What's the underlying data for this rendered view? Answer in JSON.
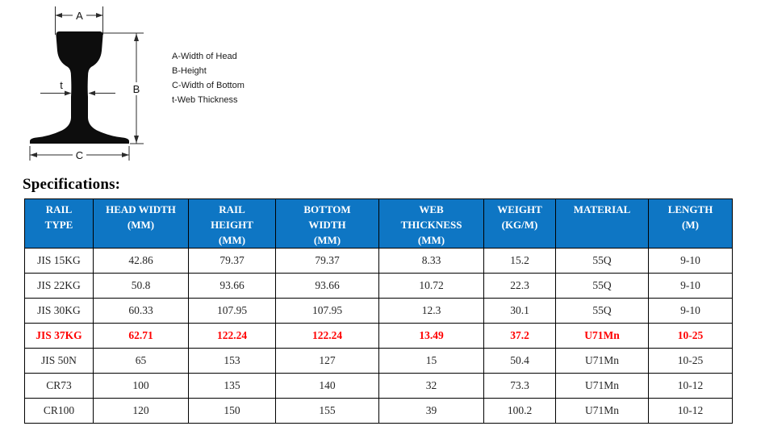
{
  "diagram": {
    "dimension_labels": {
      "a": "A",
      "b": "B",
      "c": "C",
      "t": "t"
    },
    "legend": [
      "A-Width of Head",
      "B-Height",
      "C-Width of Bottom",
      "t-Web Thickness"
    ]
  },
  "section_title": "Specifications:",
  "table": {
    "headers": [
      "RAIL\nTYPE",
      "HEAD WIDTH\n(MM)",
      "RAIL\nHEIGHT\n(MM)",
      "BOTTOM\nWIDTH\n(MM)",
      "WEB\nTHICKNESS\n(MM)",
      "WEIGHT\n(KG/M)",
      "MATERIAL",
      "LENGTH\n(M)"
    ],
    "rows": [
      {
        "highlighted": false,
        "cells": [
          "JIS 15KG",
          "42.86",
          "79.37",
          "79.37",
          "8.33",
          "15.2",
          "55Q",
          "9-10"
        ]
      },
      {
        "highlighted": false,
        "cells": [
          "JIS 22KG",
          "50.8",
          "93.66",
          "93.66",
          "10.72",
          "22.3",
          "55Q",
          "9-10"
        ]
      },
      {
        "highlighted": false,
        "cells": [
          "JIS 30KG",
          "60.33",
          "107.95",
          "107.95",
          "12.3",
          "30.1",
          "55Q",
          "9-10"
        ]
      },
      {
        "highlighted": true,
        "cells": [
          "JIS 37KG",
          "62.71",
          "122.24",
          "122.24",
          "13.49",
          "37.2",
          "U71Mn",
          "10-25"
        ]
      },
      {
        "highlighted": false,
        "cells": [
          "JIS 50N",
          "65",
          "153",
          "127",
          "15",
          "50.4",
          "U71Mn",
          "10-25"
        ]
      },
      {
        "highlighted": false,
        "cells": [
          "CR73",
          "100",
          "135",
          "140",
          "32",
          "73.3",
          "U71Mn",
          "10-12"
        ]
      },
      {
        "highlighted": false,
        "cells": [
          "CR100",
          "120",
          "150",
          "155",
          "39",
          "100.2",
          "U71Mn",
          "10-12"
        ]
      }
    ],
    "colors": {
      "header_bg": "#0E76C4",
      "header_text": "#FFFFFF",
      "body_text": "#262626",
      "highlight_text": "#FF0000",
      "border": "#000000"
    }
  }
}
